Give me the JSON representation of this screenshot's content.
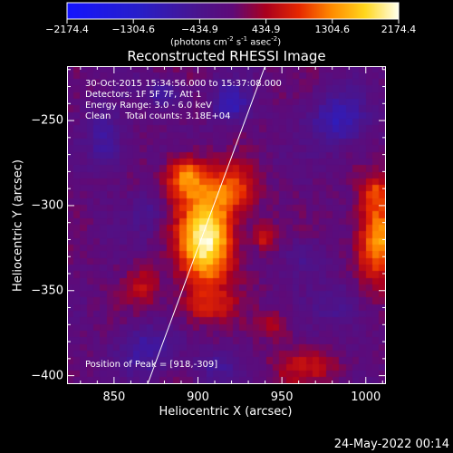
{
  "colorbar": {
    "tick_labels": [
      "-2174.4",
      "-1304.6",
      "-434.9",
      "434.9",
      "1304.6",
      "2174.4"
    ],
    "units_label": "(photons cm",
    "units_sup1": "-2",
    "units_mid1": " s",
    "units_sup2": "-1",
    "units_mid2": " asec",
    "units_sup3": "-2",
    "units_end": ")"
  },
  "title": "Reconstructed RHESSI Image",
  "info": {
    "time_range": "30-Oct-2015 15:34:56.000 to 15:37:08.000",
    "detectors": "Detectors: 1F 5F 7F, Att 1",
    "energy": "Energy Range: 3.0 - 6.0 keV",
    "clean": "Clean     Total counts: 3.18E+04",
    "peak": "Position of Peak = [918,-309]"
  },
  "chart_data": {
    "type": "heatmap",
    "title": "Reconstructed RHESSI Image",
    "xlabel": "Heliocentric X (arcsec)",
    "ylabel": "Heliocentric Y (arcsec)",
    "xlim": [
      822,
      1012
    ],
    "ylim": [
      -405,
      -218
    ],
    "xticks": [
      850,
      900,
      950,
      1000
    ],
    "yticks": [
      -250,
      -300,
      -350,
      -400
    ],
    "xtick_labels": [
      "850",
      "900",
      "950",
      "1000"
    ],
    "ytick_labels": [
      "-250",
      "-300",
      "-350",
      "-400"
    ],
    "color_range": [
      -2174.4,
      2174.4
    ],
    "peak": [
      918,
      -309
    ],
    "sources": [
      {
        "x": 905,
        "y": -320,
        "amp": 2174.4,
        "sx": 11,
        "sy": 19
      },
      {
        "x": 893,
        "y": -284,
        "amp": 1300,
        "sx": 8,
        "sy": 9
      },
      {
        "x": 921,
        "y": -290,
        "amp": 950,
        "sx": 10,
        "sy": 10
      },
      {
        "x": 940,
        "y": -318,
        "amp": 780,
        "sx": 5,
        "sy": 5
      },
      {
        "x": 1008,
        "y": -320,
        "amp": 1500,
        "sx": 9,
        "sy": 17
      },
      {
        "x": 1006,
        "y": -292,
        "amp": 700,
        "sx": 6,
        "sy": 7
      },
      {
        "x": 965,
        "y": -395,
        "amp": 600,
        "sx": 14,
        "sy": 7
      },
      {
        "x": 868,
        "y": -348,
        "amp": 600,
        "sx": 7,
        "sy": 8
      },
      {
        "x": 946,
        "y": -370,
        "amp": 500,
        "sx": 7,
        "sy": 6
      },
      {
        "x": 905,
        "y": -360,
        "amp": 600,
        "sx": 12,
        "sy": 7
      },
      {
        "x": 985,
        "y": -250,
        "amp": -900,
        "sx": 12,
        "sy": 11
      },
      {
        "x": 920,
        "y": -240,
        "amp": -900,
        "sx": 8,
        "sy": 8
      },
      {
        "x": 845,
        "y": -262,
        "amp": -700,
        "sx": 8,
        "sy": 12
      },
      {
        "x": 880,
        "y": -235,
        "amp": -650,
        "sx": 8,
        "sy": 6
      },
      {
        "x": 870,
        "y": -385,
        "amp": -700,
        "sx": 12,
        "sy": 10
      },
      {
        "x": 910,
        "y": -395,
        "amp": -500,
        "sx": 10,
        "sy": 7
      },
      {
        "x": 985,
        "y": -360,
        "amp": -500,
        "sx": 10,
        "sy": 10
      },
      {
        "x": 963,
        "y": -330,
        "amp": -400,
        "sx": 8,
        "sy": 8
      },
      {
        "x": 870,
        "y": -305,
        "amp": -400,
        "sx": 6,
        "sy": 8
      }
    ],
    "limb_line": {
      "x": [
        870,
        940
      ],
      "y": [
        -405,
        -218
      ]
    }
  },
  "footer_date": "24-May-2022 00:14"
}
